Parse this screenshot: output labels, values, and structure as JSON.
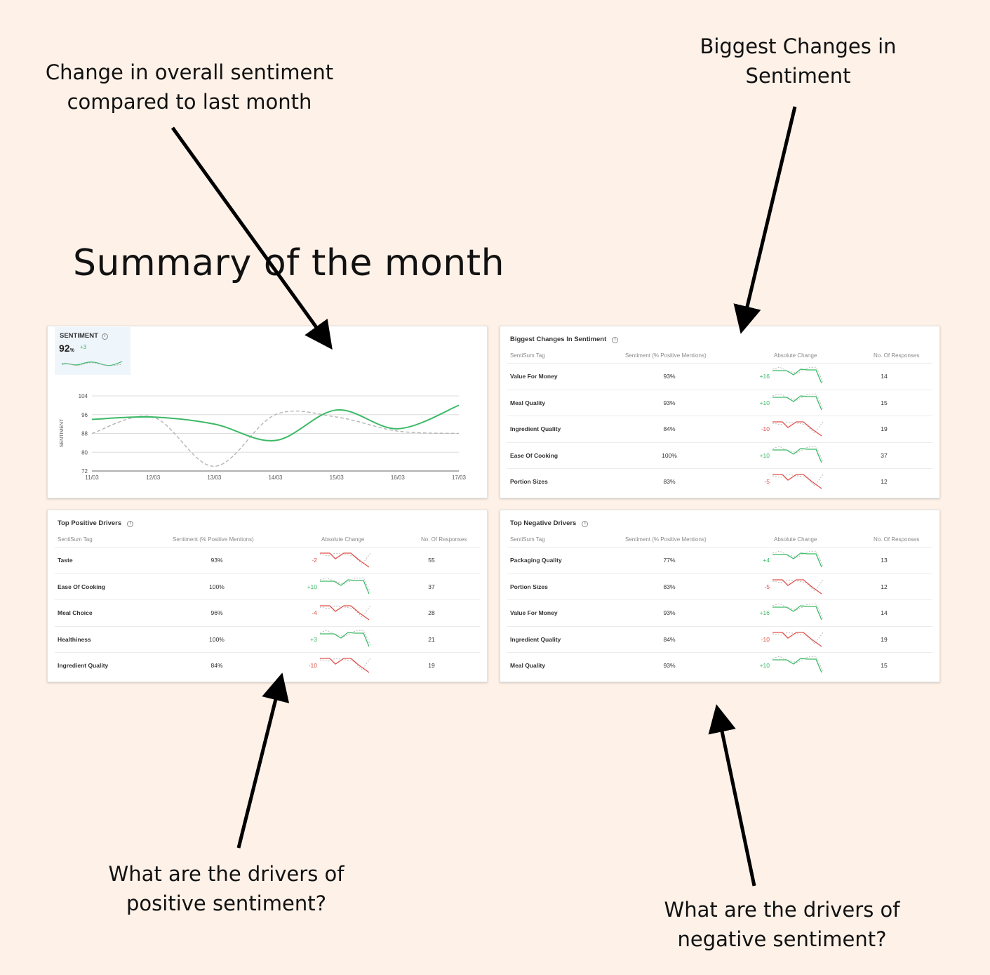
{
  "annotations": {
    "overall_change": "Change in overall sentiment\ncompared to last month",
    "biggest_changes": "Biggest Changes in\nSentiment",
    "positive_drivers": "What are the drivers of\npositive sentiment?",
    "negative_drivers": "What are the drivers of\nnegative sentiment?"
  },
  "page_title": "Summary of the month",
  "colors": {
    "positive": "#3cb966",
    "negative": "#e0504a",
    "previous": "#b5b5b5",
    "background": "#fdf1e8"
  },
  "sentiment_card": {
    "label": "SENTIMENT",
    "info_icon": "info-icon",
    "value": "92",
    "unit": "%",
    "delta": "+3",
    "y_axis_label": "SENTIMENT",
    "chart_data": {
      "type": "line",
      "x": [
        "11/03",
        "12/03",
        "13/03",
        "14/03",
        "15/03",
        "16/03",
        "17/03"
      ],
      "ylim": [
        72,
        104
      ],
      "yticks": [
        72,
        80,
        88,
        96,
        104
      ],
      "ylabel": "SENTIMENT",
      "grid": true,
      "series": [
        {
          "style": "solid",
          "color": "#3cb966",
          "values": [
            94,
            95,
            92,
            85,
            98,
            90,
            100
          ]
        },
        {
          "style": "dashed",
          "color": "#b5b5b5",
          "values": [
            88,
            95,
            74,
            96,
            95,
            89,
            88
          ]
        }
      ]
    }
  },
  "tables": [
    {
      "id": "biggest_changes",
      "title": "Biggest Changes In Sentiment",
      "headers": [
        "SentiSum Tag",
        "Sentiment (% Positive Mentions)",
        "Absolute Change",
        "No. Of Responses"
      ],
      "rows": [
        {
          "tag": "Value For Money",
          "sentiment": "93%",
          "change": "+16",
          "sign": "pos",
          "responses": "14"
        },
        {
          "tag": "Meal Quality",
          "sentiment": "93%",
          "change": "+10",
          "sign": "pos",
          "responses": "15"
        },
        {
          "tag": "Ingredient Quality",
          "sentiment": "84%",
          "change": "-10",
          "sign": "neg",
          "responses": "19"
        },
        {
          "tag": "Ease Of Cooking",
          "sentiment": "100%",
          "change": "+10",
          "sign": "pos",
          "responses": "37"
        },
        {
          "tag": "Portion Sizes",
          "sentiment": "83%",
          "change": "-5",
          "sign": "neg",
          "responses": "12"
        }
      ]
    },
    {
      "id": "top_positive",
      "title": "Top Positive Drivers",
      "headers": [
        "SentiSum Tag",
        "Sentiment (% Positive Mentions)",
        "Absolute Change",
        "No. Of Responses"
      ],
      "rows": [
        {
          "tag": "Taste",
          "sentiment": "93%",
          "change": "-2",
          "sign": "neg",
          "responses": "55"
        },
        {
          "tag": "Ease Of Cooking",
          "sentiment": "100%",
          "change": "+10",
          "sign": "pos",
          "responses": "37"
        },
        {
          "tag": "Meal Choice",
          "sentiment": "96%",
          "change": "-4",
          "sign": "neg",
          "responses": "28"
        },
        {
          "tag": "Healthiness",
          "sentiment": "100%",
          "change": "+3",
          "sign": "pos",
          "responses": "21"
        },
        {
          "tag": "Ingredient Quality",
          "sentiment": "84%",
          "change": "-10",
          "sign": "neg",
          "responses": "19"
        }
      ]
    },
    {
      "id": "top_negative",
      "title": "Top Negative Drivers",
      "headers": [
        "SentiSum Tag",
        "Sentiment (% Positive Mentions)",
        "Absolute Change",
        "No. Of Responses"
      ],
      "rows": [
        {
          "tag": "Packaging Quality",
          "sentiment": "77%",
          "change": "+4",
          "sign": "pos",
          "responses": "13"
        },
        {
          "tag": "Portion Sizes",
          "sentiment": "83%",
          "change": "-5",
          "sign": "neg",
          "responses": "12"
        },
        {
          "tag": "Value For Money",
          "sentiment": "93%",
          "change": "+16",
          "sign": "pos",
          "responses": "14"
        },
        {
          "tag": "Ingredient Quality",
          "sentiment": "84%",
          "change": "-10",
          "sign": "neg",
          "responses": "19"
        },
        {
          "tag": "Meal Quality",
          "sentiment": "93%",
          "change": "+10",
          "sign": "pos",
          "responses": "15"
        }
      ]
    }
  ]
}
